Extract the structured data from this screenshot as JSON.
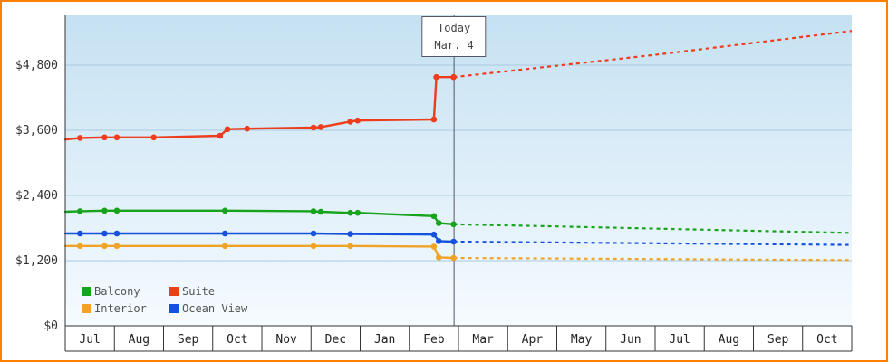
{
  "frame": {
    "border_color": "#ff8000",
    "plot_bg_top": "#c5e1f2",
    "plot_bg_bottom": "#f6fbff",
    "grid_color": "#a9cbdf",
    "axis_color": "#333333",
    "today_line_color": "#555566"
  },
  "today": {
    "line1": "Today",
    "line2": "Mar. 4",
    "month_index": 7.91
  },
  "axes": {
    "y_ticks": [
      {
        "value": 0,
        "label": "$0"
      },
      {
        "value": 1200,
        "label": "$1,200"
      },
      {
        "value": 2400,
        "label": "$2,400"
      },
      {
        "value": 3600,
        "label": "$3,600"
      },
      {
        "value": 4800,
        "label": "$4,800"
      }
    ],
    "x_month_labels": [
      "Jul",
      "Aug",
      "Sep",
      "Oct",
      "Nov",
      "Dec",
      "Jan",
      "Feb",
      "Mar",
      "Apr",
      "May",
      "Jun",
      "Jul",
      "Aug",
      "Sep",
      "Oct"
    ]
  },
  "legend": {
    "items": [
      {
        "label": "Balcony",
        "color": "#17a31b"
      },
      {
        "label": "Suite",
        "color": "#ee3c1c"
      },
      {
        "label": "Interior",
        "color": "#efa428"
      },
      {
        "label": "Ocean View",
        "color": "#1551dd"
      }
    ]
  },
  "chart_data": {
    "type": "line",
    "title": "",
    "xlabel": "",
    "ylabel": "",
    "x_categories": [
      "Jul",
      "Aug",
      "Sep",
      "Oct",
      "Nov",
      "Dec",
      "Jan",
      "Feb",
      "Mar",
      "Apr",
      "May",
      "Jun",
      "Jul",
      "Aug",
      "Sep",
      "Oct"
    ],
    "x_index_range": [
      0,
      16
    ],
    "ylim": [
      0,
      5760
    ],
    "grid": true,
    "legend_position": "bottom-left-inside",
    "today_index": 7.91,
    "today_label": "Today Mar. 4",
    "series": [
      {
        "name": "Balcony",
        "color": "#17a31b",
        "past": [
          [
            0,
            2100
          ],
          [
            0.3,
            2110
          ],
          [
            0.8,
            2120
          ],
          [
            1.05,
            2120
          ],
          [
            3.25,
            2120
          ],
          [
            5.05,
            2110
          ],
          [
            5.2,
            2100
          ],
          [
            5.8,
            2080
          ],
          [
            5.95,
            2080
          ],
          [
            7.5,
            2020
          ],
          [
            7.6,
            1890
          ],
          [
            7.9,
            1870
          ]
        ],
        "forecast": [
          [
            7.9,
            1870
          ],
          [
            10,
            1830
          ],
          [
            12,
            1790
          ],
          [
            14,
            1750
          ],
          [
            16,
            1710
          ]
        ]
      },
      {
        "name": "Suite",
        "color": "#ee3c1c",
        "past": [
          [
            0,
            3430
          ],
          [
            0.3,
            3460
          ],
          [
            0.8,
            3470
          ],
          [
            1.05,
            3470
          ],
          [
            1.8,
            3470
          ],
          [
            3.15,
            3500
          ],
          [
            3.3,
            3620
          ],
          [
            3.7,
            3630
          ],
          [
            5.05,
            3650
          ],
          [
            5.2,
            3660
          ],
          [
            5.8,
            3760
          ],
          [
            5.95,
            3780
          ],
          [
            7.5,
            3800
          ],
          [
            7.55,
            4580
          ],
          [
            7.9,
            4580
          ]
        ],
        "forecast": [
          [
            7.9,
            4580
          ],
          [
            10,
            4790
          ],
          [
            12,
            4990
          ],
          [
            14,
            5210
          ],
          [
            16,
            5430
          ]
        ]
      },
      {
        "name": "Interior",
        "color": "#efa428",
        "past": [
          [
            0,
            1470
          ],
          [
            0.3,
            1470
          ],
          [
            0.8,
            1470
          ],
          [
            1.05,
            1470
          ],
          [
            3.25,
            1470
          ],
          [
            5.05,
            1470
          ],
          [
            5.8,
            1470
          ],
          [
            7.5,
            1460
          ],
          [
            7.6,
            1260
          ],
          [
            7.9,
            1250
          ]
        ],
        "forecast": [
          [
            7.9,
            1250
          ],
          [
            12,
            1230
          ],
          [
            16,
            1210
          ]
        ]
      },
      {
        "name": "Ocean View",
        "color": "#1551dd",
        "past": [
          [
            0,
            1700
          ],
          [
            0.3,
            1700
          ],
          [
            0.8,
            1700
          ],
          [
            1.05,
            1700
          ],
          [
            3.25,
            1700
          ],
          [
            5.05,
            1700
          ],
          [
            5.8,
            1690
          ],
          [
            7.5,
            1680
          ],
          [
            7.6,
            1560
          ],
          [
            7.9,
            1550
          ]
        ],
        "forecast": [
          [
            7.9,
            1550
          ],
          [
            12,
            1520
          ],
          [
            16,
            1490
          ]
        ]
      }
    ]
  }
}
